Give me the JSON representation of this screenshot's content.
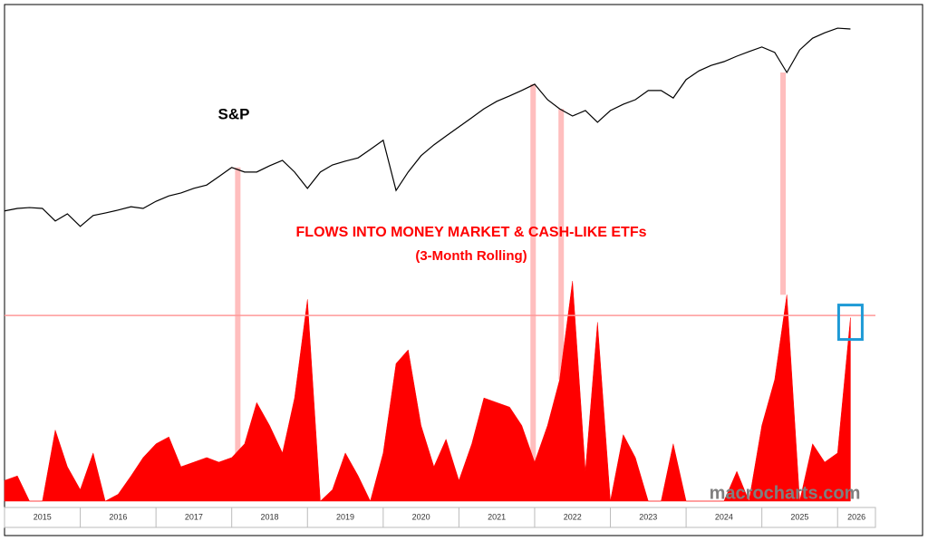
{
  "chart_data": {
    "type": "line-area",
    "title": "FLOWS INTO MONEY MARKET & CASH-LIKE ETFs",
    "subtitle": "(3-Month Rolling)",
    "source": "macrocharts.com",
    "x": [
      2015,
      2015.17,
      2015.33,
      2015.5,
      2015.67,
      2015.83,
      2016,
      2016.17,
      2016.33,
      2016.5,
      2016.67,
      2016.83,
      2017,
      2017.17,
      2017.33,
      2017.5,
      2017.67,
      2017.83,
      2018,
      2018.17,
      2018.33,
      2018.5,
      2018.67,
      2018.83,
      2019,
      2019.17,
      2019.33,
      2019.5,
      2019.67,
      2019.83,
      2020,
      2020.17,
      2020.33,
      2020.5,
      2020.67,
      2020.83,
      2021,
      2021.17,
      2021.33,
      2021.5,
      2021.67,
      2021.83,
      2022,
      2022.17,
      2022.33,
      2022.5,
      2022.67,
      2022.83,
      2023,
      2023.17,
      2023.33,
      2023.5,
      2023.67,
      2023.83,
      2024,
      2024.17,
      2024.33,
      2024.5,
      2024.67,
      2024.83,
      2025,
      2025.17,
      2025.33,
      2025.5,
      2025.67,
      2025.83,
      2026,
      2026.17
    ],
    "xlim": [
      2015,
      2026.5
    ],
    "xticks": [
      2015,
      2016,
      2017,
      2018,
      2019,
      2020,
      2021,
      2022,
      2023,
      2024,
      2025,
      2026
    ],
    "ylim": [
      1800,
      7000
    ],
    "y2lim": [
      0,
      100
    ],
    "threshold": 81,
    "highlight_x": [
      2018.08,
      2021.98,
      2022.35,
      2025.28
    ],
    "series": [
      {
        "name": "S&P",
        "color": "#000000",
        "values": [
          2390,
          2450,
          2470,
          2450,
          2150,
          2320,
          2020,
          2280,
          2340,
          2410,
          2490,
          2450,
          2620,
          2750,
          2820,
          2930,
          3010,
          3210,
          3430,
          3320,
          3320,
          3470,
          3600,
          3320,
          2930,
          3320,
          3490,
          3580,
          3660,
          3860,
          4080,
          2880,
          3320,
          3710,
          3970,
          4180,
          4400,
          4620,
          4830,
          5010,
          5140,
          5270,
          5420,
          5050,
          4830,
          4660,
          4790,
          4510,
          4790,
          4940,
          5050,
          5270,
          5270,
          5090,
          5530,
          5740,
          5870,
          5960,
          6090,
          6200,
          6310,
          6180,
          5700,
          6240,
          6520,
          6650,
          6760,
          6740
        ]
      },
      {
        "name": "Flows",
        "axis": "y2",
        "color": "#ff0000",
        "values": [
          9,
          11,
          0,
          0,
          31,
          15,
          5,
          21,
          0,
          3,
          11,
          19,
          25,
          28,
          15,
          17,
          19,
          17,
          19,
          25,
          43,
          33,
          21,
          45,
          88,
          0,
          5,
          21,
          11,
          0,
          21,
          60,
          66,
          33,
          15,
          27,
          9,
          25,
          45,
          43,
          41,
          33,
          17,
          33,
          53,
          96,
          13,
          78,
          0,
          29,
          19,
          0,
          0,
          25,
          0,
          0,
          0,
          0,
          13,
          0,
          33,
          53,
          90,
          0,
          25,
          17,
          21,
          80
        ]
      }
    ]
  }
}
